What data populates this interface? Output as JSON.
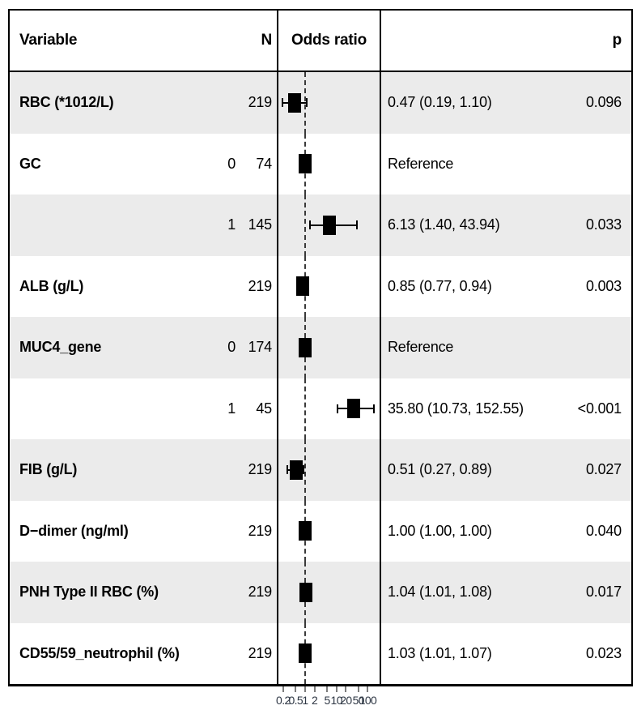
{
  "header": {
    "variable": "Variable",
    "n": "N",
    "odds_ratio": "Odds ratio",
    "p": "p"
  },
  "colors": {
    "stripe": "#ebebeb",
    "border": "#000000",
    "marker": "#000000",
    "ref_line": "#3a3a3a",
    "tick": "#7d7d7d",
    "tick_label": "#2e3744"
  },
  "chart_data": {
    "type": "forest",
    "title": "",
    "xlabel": "Odds ratio",
    "scale": "log10",
    "axis": {
      "min": 0.141,
      "max": 237,
      "ref_line": 1,
      "ticks": [
        {
          "v": 0.2,
          "label": "0.2"
        },
        {
          "v": 0.5,
          "label": "0.5"
        },
        {
          "v": 1,
          "label": "1"
        },
        {
          "v": 2,
          "label": "2"
        },
        {
          "v": 5,
          "label": "5"
        },
        {
          "v": 10,
          "label": "10"
        },
        {
          "v": 20,
          "label": "20"
        },
        {
          "v": 50,
          "label": "50"
        },
        {
          "v": 100,
          "label": "100"
        }
      ]
    },
    "legend_position": "none",
    "rows": [
      {
        "variable": "RBC (*1012/L)",
        "level": "",
        "n": "219",
        "or": 0.47,
        "low": 0.19,
        "high": 1.1,
        "ref": false,
        "est_label": "0.47 (0.19, 1.10)",
        "p": "0.096"
      },
      {
        "variable": "GC",
        "level": "0",
        "n": "74",
        "or": 1,
        "low": null,
        "high": null,
        "ref": true,
        "est_label": "Reference",
        "p": ""
      },
      {
        "variable": "",
        "level": "1",
        "n": "145",
        "or": 6.13,
        "low": 1.4,
        "high": 43.94,
        "ref": false,
        "est_label": "6.13 (1.40, 43.94)",
        "p": "0.033"
      },
      {
        "variable": "ALB (g/L)",
        "level": "",
        "n": "219",
        "or": 0.85,
        "low": 0.77,
        "high": 0.94,
        "ref": false,
        "est_label": "0.85 (0.77, 0.94)",
        "p": "0.003"
      },
      {
        "variable": "MUC4_gene",
        "level": "0",
        "n": "174",
        "or": 1,
        "low": null,
        "high": null,
        "ref": true,
        "est_label": "Reference",
        "p": ""
      },
      {
        "variable": "",
        "level": "1",
        "n": "45",
        "or": 35.8,
        "low": 10.73,
        "high": 152.55,
        "ref": false,
        "est_label": "35.80 (10.73, 152.55)",
        "p": "<0.001"
      },
      {
        "variable": "FIB (g/L)",
        "level": "",
        "n": "219",
        "or": 0.51,
        "low": 0.27,
        "high": 0.89,
        "ref": false,
        "est_label": "0.51 (0.27, 0.89)",
        "p": "0.027"
      },
      {
        "variable": "D−dimer (ng/ml)",
        "level": "",
        "n": "219",
        "or": 1.0,
        "low": 1.0,
        "high": 1.0,
        "ref": false,
        "est_label": "1.00 (1.00, 1.00)",
        "p": "0.040"
      },
      {
        "variable": "PNH Type II RBC (%)",
        "level": "",
        "n": "219",
        "or": 1.04,
        "low": 1.01,
        "high": 1.08,
        "ref": false,
        "est_label": "1.04 (1.01, 1.08)",
        "p": "0.017"
      },
      {
        "variable": "CD55/59_neutrophil (%)",
        "level": "",
        "n": "219",
        "or": 1.03,
        "low": 1.01,
        "high": 1.07,
        "ref": false,
        "est_label": "1.03 (1.01, 1.07)",
        "p": "0.023"
      }
    ]
  }
}
